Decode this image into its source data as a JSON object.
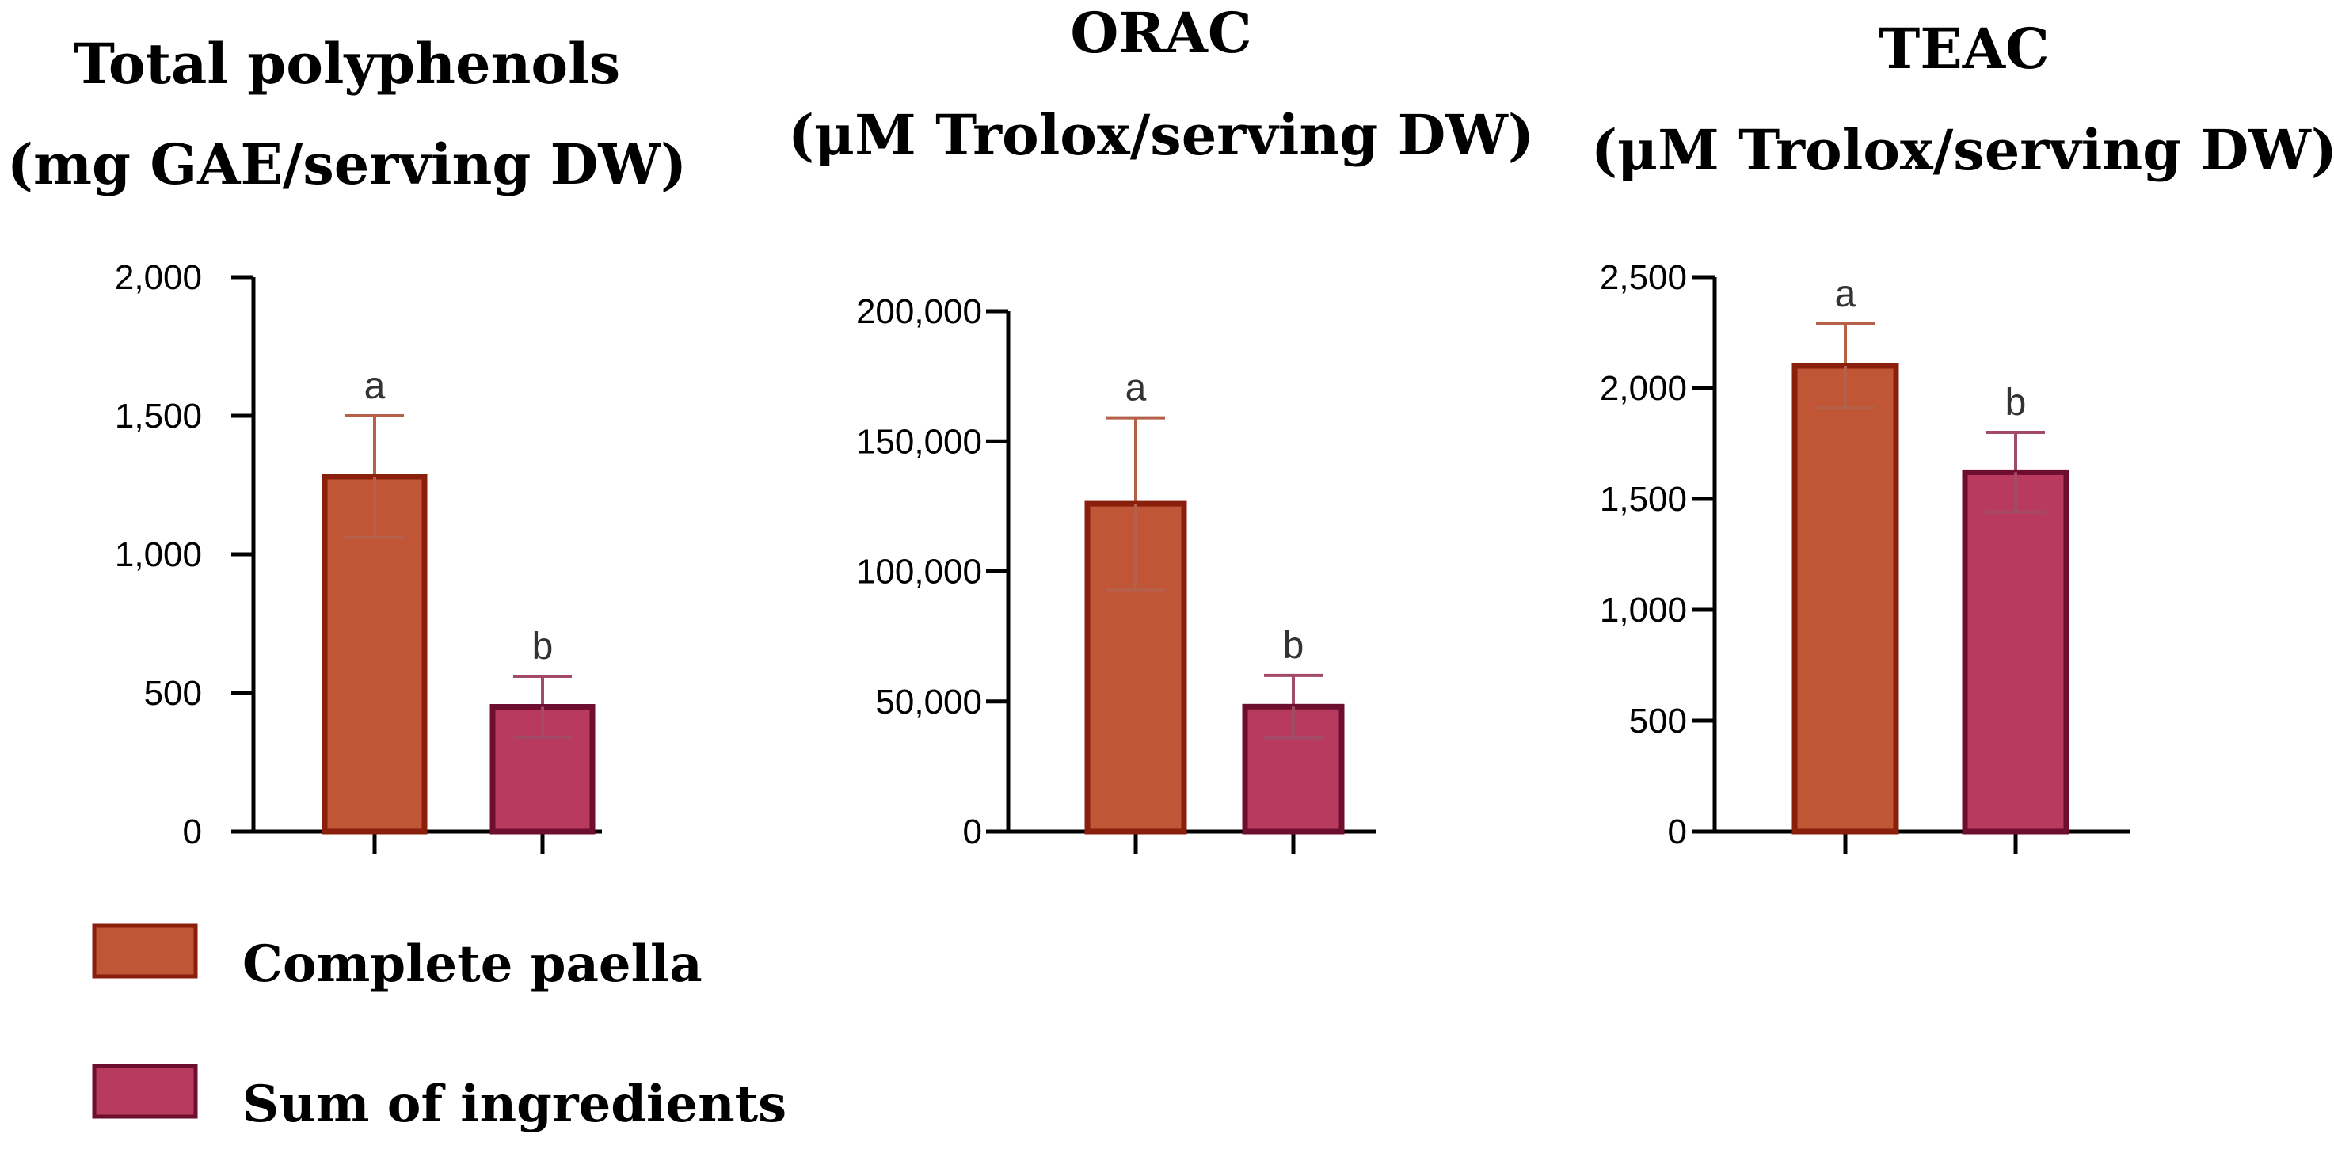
{
  "colors": {
    "complete_fill": "#C05636",
    "complete_stroke": "#8A1F0C",
    "complete_err": "#B5614A",
    "sum_fill": "#B83A5E",
    "sum_stroke": "#6E0E2E",
    "sum_err": "#A24A66"
  },
  "legend": {
    "items": [
      {
        "label": "Complete paella",
        "color_key": "complete"
      },
      {
        "label": "Sum of ingredients",
        "color_key": "sum"
      }
    ]
  },
  "chart_data": [
    {
      "type": "bar",
      "title_lines": [
        "Total polyphenols",
        "(mg GAE/serving DW)"
      ],
      "categories": [
        "Complete paella",
        "Sum of ingredients"
      ],
      "values": [
        1280,
        450
      ],
      "errors": [
        220,
        110
      ],
      "significance": [
        "a",
        "b"
      ],
      "ylim": [
        0,
        2000
      ],
      "yticks": [
        0,
        500,
        1000,
        1500,
        2000
      ],
      "ytick_labels": [
        "0",
        "500",
        "1,000",
        "1,500",
        "2,000"
      ],
      "xlabel": "",
      "ylabel": ""
    },
    {
      "type": "bar",
      "title_lines": [
        "ORAC",
        "(μM Trolox/serving DW)"
      ],
      "categories": [
        "Complete paella",
        "Sum of ingredients"
      ],
      "values": [
        126000,
        48000
      ],
      "errors": [
        33000,
        12000
      ],
      "significance": [
        "a",
        "b"
      ],
      "ylim": [
        0,
        200000
      ],
      "yticks": [
        0,
        50000,
        100000,
        150000,
        200000
      ],
      "ytick_labels": [
        "0",
        "50,000",
        "100,000",
        "150,000",
        "200,000"
      ],
      "xlabel": "",
      "ylabel": ""
    },
    {
      "type": "bar",
      "title_lines": [
        "TEAC",
        "(μM Trolox/serving DW)"
      ],
      "categories": [
        "Complete paella",
        "Sum of ingredients"
      ],
      "values": [
        2100,
        1620
      ],
      "errors": [
        190,
        180
      ],
      "significance": [
        "a",
        "b"
      ],
      "ylim": [
        0,
        2500
      ],
      "yticks": [
        0,
        500,
        1000,
        1500,
        2000,
        2500
      ],
      "ytick_labels": [
        "0",
        "500",
        "1,000",
        "1,500",
        "2,000",
        "2,500"
      ],
      "xlabel": "",
      "ylabel": ""
    }
  ]
}
